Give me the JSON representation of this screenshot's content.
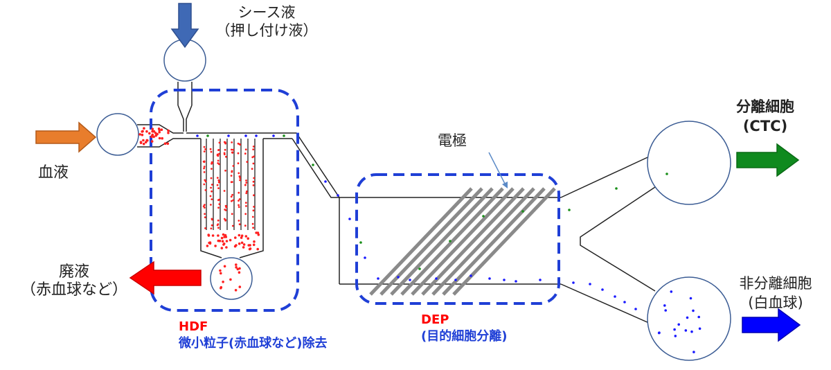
{
  "labels": {
    "sheath_line1": "シース液",
    "sheath_line2": "（押し付け液）",
    "blood": "血液",
    "waste_line1": "廃液",
    "waste_line2": "（赤血球など）",
    "hdf_title": "HDF",
    "hdf_desc": "微小粒子(赤血球など)除去",
    "dep_title": "DEP",
    "dep_desc": "(目的細胞分離)",
    "electrode": "電極",
    "separated_line1": "分離細胞",
    "separated_line2": "(CTC)",
    "nonseparated_line1": "非分離細胞",
    "nonseparated_line2": "(白血球)"
  },
  "colors": {
    "sheath_arrow": "#3f69b5",
    "blood_arrow": "#e87d2c",
    "waste_arrow": "#ff0000",
    "ctc_arrow": "#0f8a1e",
    "wbc_arrow": "#0000ff",
    "region_border": "#1f3fd6",
    "electrode": "#8a8a8a",
    "hdf_text": "#ff0000",
    "dep_text": "#1f3fd6",
    "rbc_dot": "#ff2020",
    "wbc_dot": "#1a1aff",
    "ctc_dot": "#1a8f1a",
    "channel_line": "#222222",
    "chamber_outline": "#3b5c94"
  },
  "icons": [
    "down-arrow-icon",
    "right-arrow-icon",
    "left-arrow-icon"
  ]
}
